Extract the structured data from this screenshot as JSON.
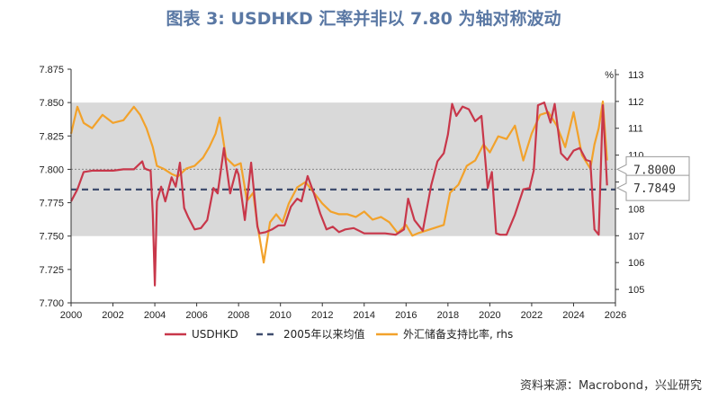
{
  "title": "图表 3:  USDHKD 汇率并非以 7.80 为轴对称波动",
  "source": "资料来源：Macrobond，兴业研究",
  "chart_data": {
    "type": "line",
    "title": "图表 3:  USDHKD 汇率并非以 7.80 为轴对称波动",
    "xlim": [
      2000,
      2026
    ],
    "x_ticks": [
      "2000",
      "2002",
      "2004",
      "2006",
      "2008",
      "2010",
      "2012",
      "2014",
      "2016",
      "2018",
      "2020",
      "2022",
      "2024",
      "2026"
    ],
    "ylim": [
      7.7,
      7.875
    ],
    "y_ticks": [
      "7.700",
      "7.725",
      "7.750",
      "7.775",
      "7.800",
      "7.825",
      "7.850",
      "7.875"
    ],
    "y2lim": [
      104.5,
      113.2
    ],
    "y2_ticks": [
      "105",
      "106",
      "107",
      "108",
      "109",
      "110",
      "111",
      "112",
      "113"
    ],
    "y2_unit": "%",
    "band": {
      "low": 7.75,
      "high": 7.85,
      "color": "#d9d9d9"
    },
    "reference_lines": [
      {
        "name": "7.80",
        "value": 7.8,
        "style": "dotted",
        "color": "#888888",
        "label": "7.8000"
      },
      {
        "name": "2005年以来均值",
        "value": 7.7849,
        "style": "dashed",
        "color": "#3f4d6e",
        "label": "7.7849"
      }
    ],
    "legend": [
      "USDHKD",
      "2005年以来均值",
      "外汇储备支持比率, rhs"
    ],
    "legend_position": "bottom",
    "series": [
      {
        "name": "USDHKD",
        "axis": "left",
        "color": "#c8374a",
        "x": [
          2000.0,
          2000.3,
          2000.6,
          2001.0,
          2001.5,
          2002.0,
          2002.5,
          2003.0,
          2003.4,
          2003.5,
          2003.6,
          2003.8,
          2003.9,
          2004.0,
          2004.1,
          2004.3,
          2004.5,
          2004.8,
          2005.0,
          2005.2,
          2005.4,
          2005.6,
          2005.9,
          2006.2,
          2006.5,
          2006.8,
          2007.0,
          2007.3,
          2007.6,
          2007.9,
          2008.0,
          2008.3,
          2008.6,
          2008.9,
          2009.0,
          2009.3,
          2009.6,
          2009.9,
          2010.2,
          2010.5,
          2010.8,
          2011.0,
          2011.3,
          2011.6,
          2011.9,
          2012.2,
          2012.5,
          2012.8,
          2013.1,
          2013.5,
          2014.0,
          2014.5,
          2015.0,
          2015.5,
          2015.9,
          2016.1,
          2016.4,
          2016.8,
          2017.2,
          2017.5,
          2017.8,
          2018.0,
          2018.2,
          2018.4,
          2018.7,
          2019.0,
          2019.3,
          2019.6,
          2019.9,
          2020.1,
          2020.3,
          2020.5,
          2020.8,
          2021.2,
          2021.6,
          2021.9,
          2022.1,
          2022.3,
          2022.6,
          2022.9,
          2023.1,
          2023.4,
          2023.7,
          2024.0,
          2024.3,
          2024.6,
          2024.8,
          2025.0,
          2025.2,
          2025.4,
          2025.6
        ],
        "values": [
          7.776,
          7.785,
          7.798,
          7.799,
          7.799,
          7.799,
          7.8,
          7.8,
          7.806,
          7.801,
          7.8,
          7.799,
          7.767,
          7.713,
          7.776,
          7.787,
          7.776,
          7.794,
          7.787,
          7.805,
          7.771,
          7.764,
          7.755,
          7.756,
          7.762,
          7.786,
          7.782,
          7.816,
          7.782,
          7.8,
          7.796,
          7.762,
          7.805,
          7.757,
          7.752,
          7.753,
          7.755,
          7.758,
          7.758,
          7.772,
          7.778,
          7.776,
          7.795,
          7.782,
          7.767,
          7.755,
          7.757,
          7.753,
          7.755,
          7.756,
          7.752,
          7.752,
          7.752,
          7.751,
          7.755,
          7.778,
          7.762,
          7.754,
          7.788,
          7.806,
          7.812,
          7.826,
          7.849,
          7.84,
          7.847,
          7.845,
          7.836,
          7.84,
          7.786,
          7.798,
          7.752,
          7.751,
          7.751,
          7.766,
          7.785,
          7.786,
          7.799,
          7.848,
          7.85,
          7.835,
          7.849,
          7.812,
          7.807,
          7.814,
          7.816,
          7.807,
          7.806,
          7.755,
          7.751,
          7.848,
          7.788
        ]
      },
      {
        "name": "外汇储备支持比率, rhs",
        "axis": "right",
        "color": "#f2a22b",
        "x": [
          2000.0,
          2000.3,
          2000.6,
          2001.0,
          2001.5,
          2002.0,
          2002.5,
          2003.0,
          2003.3,
          2003.6,
          2003.9,
          2004.1,
          2004.4,
          2004.8,
          2005.1,
          2005.5,
          2005.9,
          2006.3,
          2006.6,
          2006.9,
          2007.1,
          2007.4,
          2007.8,
          2008.1,
          2008.4,
          2008.7,
          2008.9,
          2009.2,
          2009.5,
          2009.8,
          2010.1,
          2010.4,
          2010.8,
          2011.2,
          2011.6,
          2012.0,
          2012.4,
          2012.8,
          2013.2,
          2013.6,
          2014.0,
          2014.4,
          2014.8,
          2015.2,
          2015.6,
          2016.0,
          2016.3,
          2016.6,
          2017.0,
          2017.4,
          2017.8,
          2018.1,
          2018.5,
          2018.9,
          2019.3,
          2019.7,
          2020.0,
          2020.4,
          2020.8,
          2021.2,
          2021.6,
          2022.0,
          2022.4,
          2022.8,
          2023.2,
          2023.6,
          2024.0,
          2024.4,
          2024.8,
          2025.0,
          2025.2,
          2025.4,
          2025.6
        ],
        "values": [
          110.8,
          111.8,
          111.2,
          111.0,
          111.5,
          111.2,
          111.3,
          111.8,
          111.5,
          111.0,
          110.3,
          109.6,
          109.5,
          109.3,
          109.2,
          109.5,
          109.6,
          109.9,
          110.3,
          110.8,
          111.4,
          109.9,
          109.6,
          109.7,
          108.3,
          108.6,
          107.4,
          106.0,
          107.5,
          107.8,
          107.5,
          108.2,
          108.8,
          109.0,
          108.6,
          108.2,
          107.9,
          107.8,
          107.8,
          107.7,
          107.9,
          107.6,
          107.7,
          107.5,
          107.1,
          107.4,
          107.0,
          107.1,
          107.2,
          107.3,
          107.4,
          108.6,
          108.9,
          109.6,
          109.8,
          110.4,
          110.1,
          110.7,
          110.6,
          111.1,
          109.8,
          110.8,
          111.5,
          111.6,
          111.1,
          110.3,
          111.6,
          110.0,
          109.5,
          110.4,
          111.0,
          112.0,
          109.8
        ]
      }
    ]
  },
  "legend_labels": {
    "usdhkd": "USDHKD",
    "mean": "2005年以来均值",
    "ratio": "外汇储备支持比率, rhs"
  },
  "callouts": {
    "peg": "7.8000",
    "mean": "7.7849"
  },
  "right_axis_unit": "%",
  "colors": {
    "title": "#5a78a4",
    "usdhkd": "#c8374a",
    "ratio": "#f2a22b",
    "mean_line": "#3f4d6e",
    "band": "#d9d9d9"
  }
}
